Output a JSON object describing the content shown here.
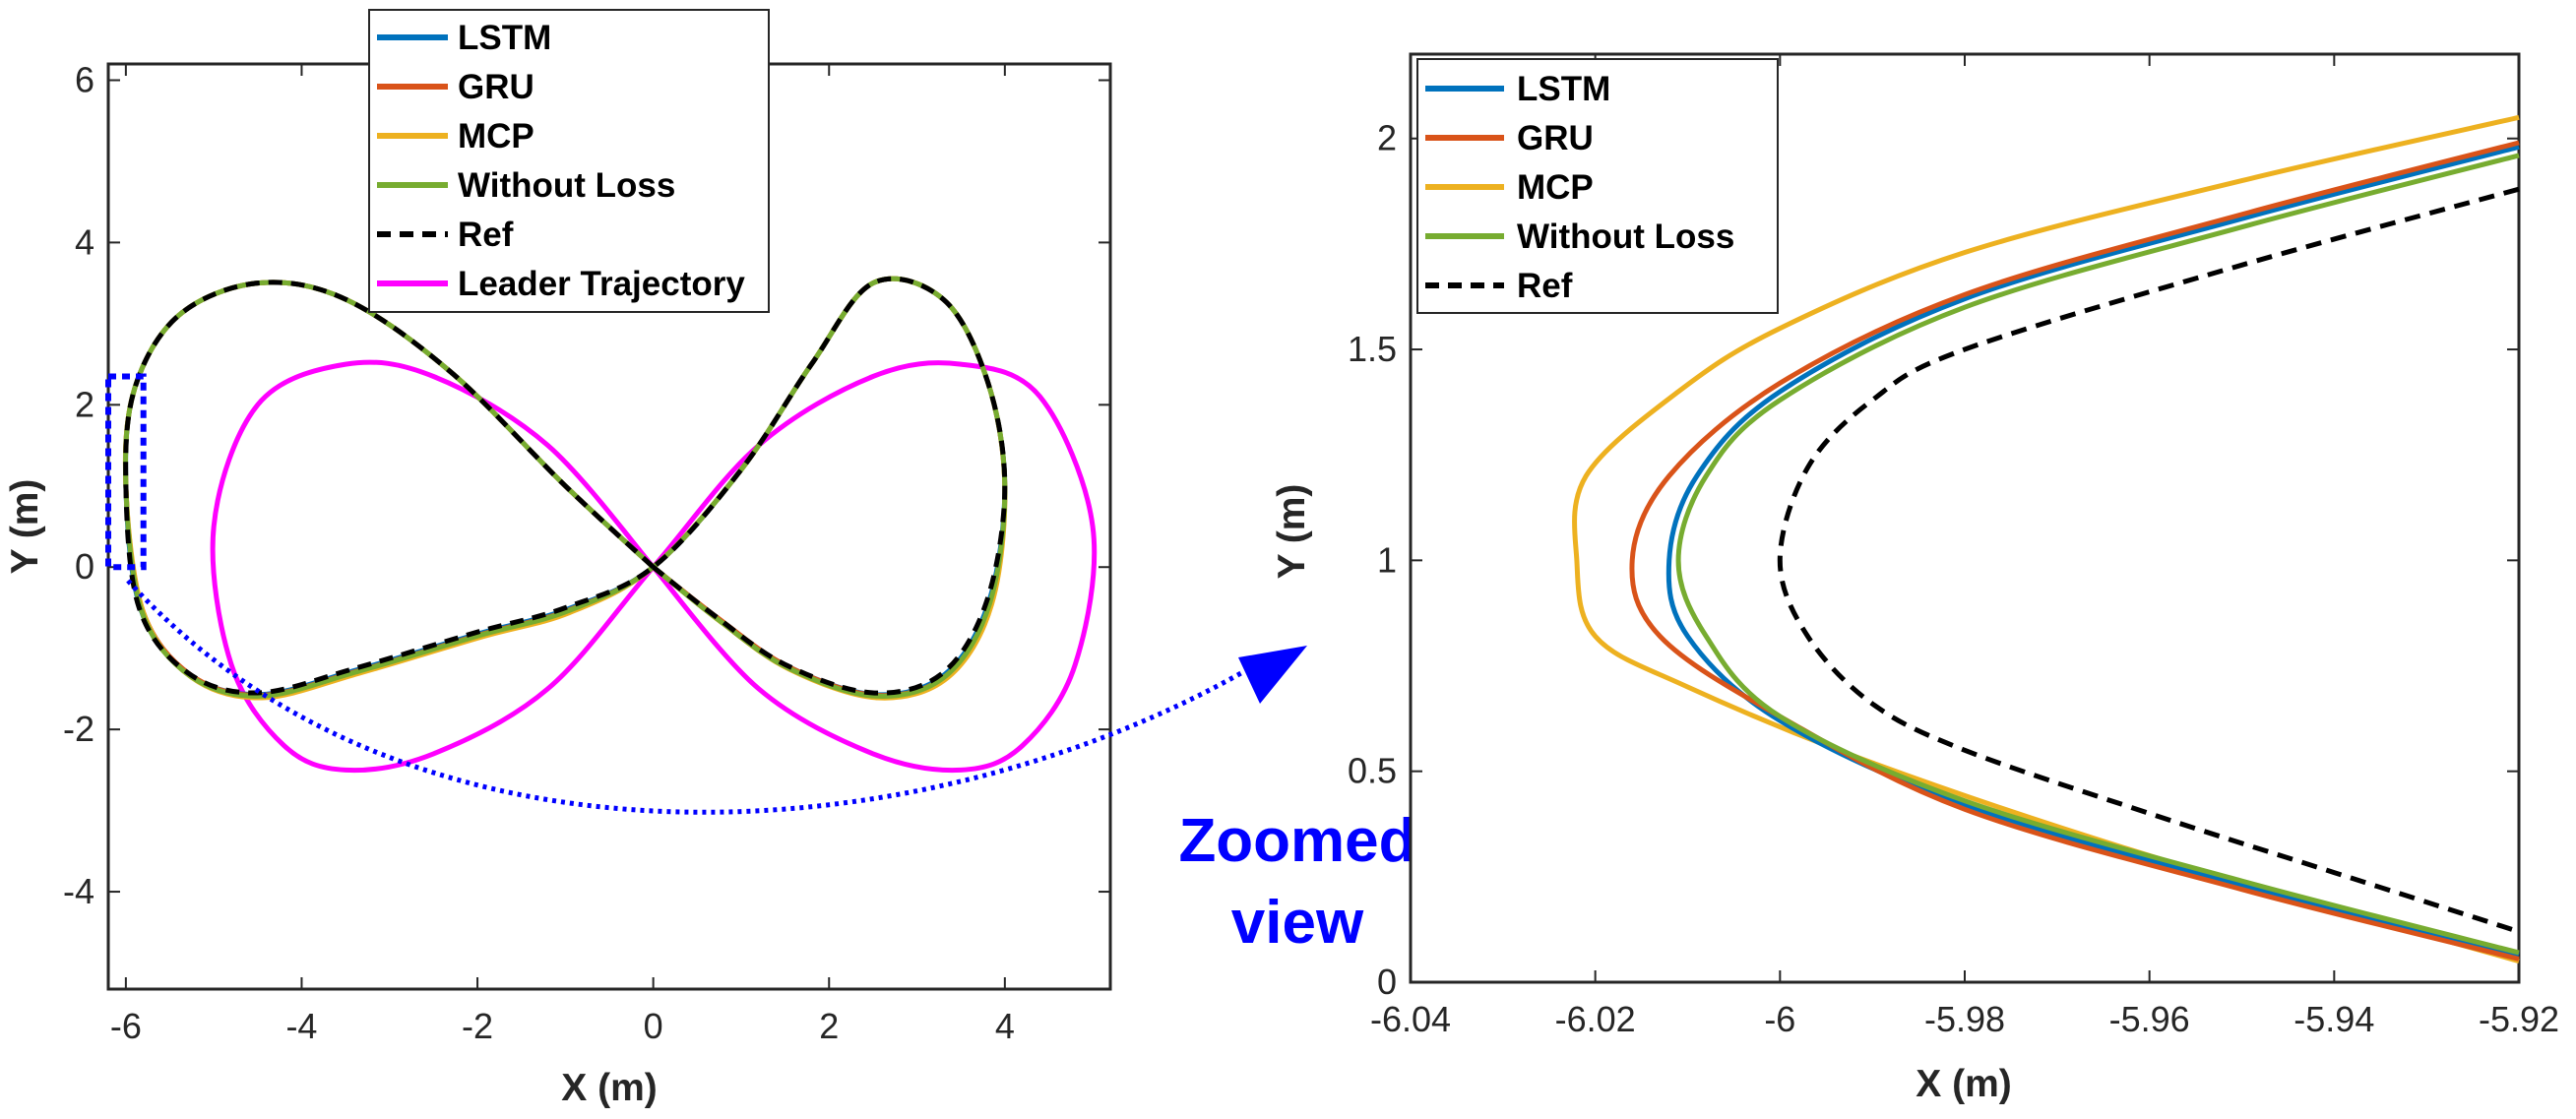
{
  "colors": {
    "LSTM": "#0072BD",
    "GRU": "#D95319",
    "MCP": "#EDB120",
    "Without Loss": "#77AC30",
    "Ref": "#000000",
    "Leader Trajectory": "#FF00FF",
    "annotation": "#0000FF"
  },
  "annotation": {
    "line1": "Zoomed",
    "line2": "view"
  },
  "chart_data": [
    {
      "type": "line",
      "panel": "left",
      "xlabel": "X (m)",
      "ylabel": "Y (m)",
      "xlim": [
        -6.2,
        5.2
      ],
      "ylim": [
        -5.2,
        6.2
      ],
      "xticks": [
        -6,
        -4,
        -2,
        0,
        2,
        4
      ],
      "yticks": [
        -4,
        -2,
        0,
        2,
        4,
        6
      ],
      "xtick_labels": [
        "-6",
        "-4",
        "-2",
        "0",
        "2",
        "4"
      ],
      "ytick_labels": [
        "-4",
        "-2",
        "0",
        "2",
        "4",
        "6"
      ],
      "legend_position": "top-center",
      "zoom_box": {
        "x": [
          -6.2,
          -5.8
        ],
        "y": [
          0,
          2.35
        ]
      },
      "series": [
        {
          "name": "LSTM",
          "style": "solid",
          "model": "figure-eight",
          "A": 4.5,
          "B": 4.5,
          "period_deg": 360,
          "phase_deg": -60,
          "offset": [
            0,
            1
          ],
          "skew": 0.06
        },
        {
          "name": "GRU",
          "style": "solid",
          "model": "figure-eight",
          "A": 4.5,
          "B": 4.5,
          "period_deg": 360,
          "phase_deg": -60,
          "offset": [
            0,
            1
          ],
          "skew": 0.06
        },
        {
          "name": "MCP",
          "style": "solid",
          "model": "figure-eight",
          "A": 4.5,
          "B": 4.5,
          "period_deg": 360,
          "phase_deg": -60,
          "offset": [
            0,
            1
          ],
          "skew": 0.06
        },
        {
          "name": "Without Loss",
          "style": "solid",
          "model": "figure-eight",
          "A": 4.5,
          "B": 4.5,
          "period_deg": 360,
          "phase_deg": -60,
          "offset": [
            0,
            1
          ],
          "skew": 0.06
        },
        {
          "name": "Ref",
          "style": "dashed",
          "model": "figure-eight",
          "A": 4.5,
          "B": 4.5,
          "period_deg": 360,
          "phase_deg": -60,
          "offset": [
            0,
            1
          ],
          "skew": 0.06
        },
        {
          "name": "Leader Trajectory",
          "style": "solid",
          "model": "figure-eight",
          "A": 5,
          "B": 5,
          "period_deg": 360,
          "phase_deg": 0,
          "offset": [
            0,
            0
          ],
          "skew": 0
        }
      ]
    },
    {
      "type": "line",
      "panel": "right",
      "xlabel": "X (m)",
      "ylabel": "Y (m)",
      "xlim": [
        -6.04,
        -5.92
      ],
      "ylim": [
        0,
        2.2
      ],
      "xticks": [
        -6.04,
        -6.02,
        -6,
        -5.98,
        -5.96,
        -5.94,
        -5.92
      ],
      "yticks": [
        0,
        0.5,
        1,
        1.5,
        2
      ],
      "xtick_labels": [
        "-6.04",
        "-6.02",
        "-6",
        "-5.98",
        "-5.96",
        "-5.94",
        "-5.92"
      ],
      "ytick_labels": [
        "0",
        "0.5",
        "1",
        "1.5",
        "2"
      ],
      "legend_position": "top-left",
      "series": [
        {
          "name": "LSTM",
          "style": "solid",
          "x": [
            -5.92,
            -5.95,
            -5.98,
            -6.0,
            -6.009,
            -6.012,
            -6.01,
            -6.0,
            -5.98,
            -5.95,
            -5.92
          ],
          "y": [
            1.98,
            1.81,
            1.62,
            1.4,
            1.2,
            1.0,
            0.82,
            0.62,
            0.42,
            0.23,
            0.065
          ]
        },
        {
          "name": "GRU",
          "style": "solid",
          "x": [
            -5.92,
            -5.95,
            -5.98,
            -6.0,
            -6.012,
            -6.016,
            -6.013,
            -6.0,
            -5.98,
            -5.95,
            -5.92
          ],
          "y": [
            1.99,
            1.82,
            1.63,
            1.42,
            1.2,
            1.0,
            0.82,
            0.63,
            0.41,
            0.22,
            0.055
          ]
        },
        {
          "name": "MCP",
          "style": "solid",
          "x": [
            -5.92,
            -5.95,
            -5.98,
            -6.0,
            -6.011,
            -6.021,
            -6.022,
            -6.02,
            -6.01,
            -5.99,
            -5.96,
            -5.92
          ],
          "y": [
            2.05,
            1.9,
            1.73,
            1.55,
            1.4,
            1.2,
            1.0,
            0.82,
            0.7,
            0.52,
            0.3,
            0.05
          ]
        },
        {
          "name": "Without Loss",
          "style": "solid",
          "x": [
            -5.92,
            -5.95,
            -5.98,
            -6.0,
            -6.008,
            -6.011,
            -6.008,
            -6.0,
            -5.98,
            -5.95,
            -5.92
          ],
          "y": [
            1.96,
            1.79,
            1.6,
            1.38,
            1.2,
            1.0,
            0.82,
            0.63,
            0.43,
            0.24,
            0.07
          ]
        },
        {
          "name": "Ref",
          "style": "dashed",
          "x": [
            -5.92,
            -5.95,
            -5.98,
            -5.99,
            -5.997,
            -6.0,
            -5.997,
            -5.99,
            -5.98,
            -5.96,
            -5.94,
            -5.92
          ],
          "y": [
            1.88,
            1.7,
            1.5,
            1.38,
            1.22,
            1.0,
            0.82,
            0.66,
            0.55,
            0.4,
            0.26,
            0.12
          ]
        }
      ]
    }
  ]
}
